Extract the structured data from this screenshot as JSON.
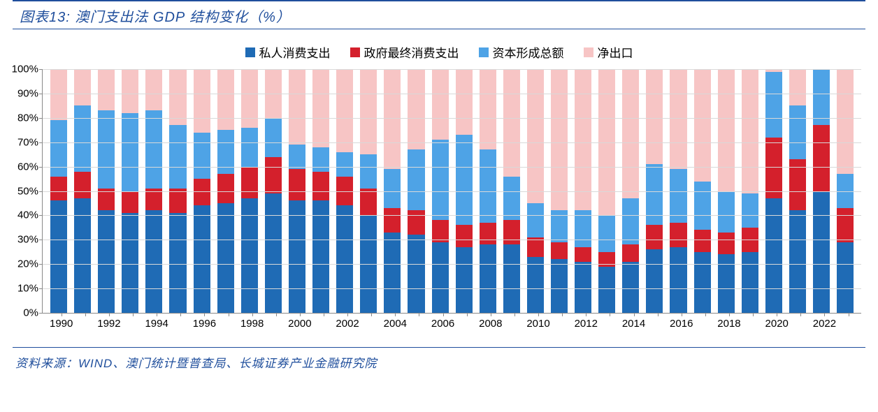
{
  "title": "图表13:  澳门支出法 GDP 结构变化（%）",
  "source": "资料来源：WIND、澳门统计暨普查局、长城证券产业金融研究院",
  "chart": {
    "type": "stacked-bar-100",
    "ylim": [
      0,
      100
    ],
    "ytick_step": 10,
    "ylabel_suffix": "%",
    "background_color": "#ffffff",
    "grid_color": "#d9d9d9",
    "axis_color": "#888888",
    "title_color": "#1f4e9c",
    "label_fontsize": 15,
    "title_fontsize": 20,
    "legend_fontsize": 17,
    "bar_gap_ratio": 0.25,
    "series_colors": {
      "priv": "#1f6bb5",
      "gov": "#d4202c",
      "cap": "#4ea3e6",
      "netx": "#f7c5c5"
    },
    "series_labels": {
      "priv": "私人消费支出",
      "gov": "政府最终消费支出",
      "cap": "资本形成总额",
      "netx": "净出口"
    },
    "years": [
      "1990",
      "1991",
      "1992",
      "1993",
      "1994",
      "1995",
      "1996",
      "1997",
      "1998",
      "1999",
      "2000",
      "2001",
      "2002",
      "2003",
      "2004",
      "2005",
      "2006",
      "2007",
      "2008",
      "2009",
      "2010",
      "2011",
      "2012",
      "2013",
      "2014",
      "2015",
      "2016",
      "2017",
      "2018",
      "2019",
      "2020",
      "2021",
      "2022",
      "2023"
    ],
    "xlabel_every": 2,
    "data": [
      {
        "priv": 46,
        "gov": 10,
        "cap": 23,
        "netx": 21
      },
      {
        "priv": 47,
        "gov": 11,
        "cap": 27,
        "netx": 15
      },
      {
        "priv": 42,
        "gov": 9,
        "cap": 32,
        "netx": 17
      },
      {
        "priv": 41,
        "gov": 9,
        "cap": 32,
        "netx": 18
      },
      {
        "priv": 42,
        "gov": 9,
        "cap": 32,
        "netx": 17
      },
      {
        "priv": 41,
        "gov": 10,
        "cap": 26,
        "netx": 23
      },
      {
        "priv": 44,
        "gov": 11,
        "cap": 19,
        "netx": 26
      },
      {
        "priv": 45,
        "gov": 12,
        "cap": 18,
        "netx": 25
      },
      {
        "priv": 47,
        "gov": 13,
        "cap": 16,
        "netx": 24
      },
      {
        "priv": 49,
        "gov": 15,
        "cap": 16,
        "netx": 20
      },
      {
        "priv": 46,
        "gov": 13,
        "cap": 10,
        "netx": 31
      },
      {
        "priv": 46,
        "gov": 12,
        "cap": 10,
        "netx": 32
      },
      {
        "priv": 44,
        "gov": 12,
        "cap": 10,
        "netx": 34
      },
      {
        "priv": 40,
        "gov": 11,
        "cap": 14,
        "netx": 35
      },
      {
        "priv": 33,
        "gov": 10,
        "cap": 16,
        "netx": 41
      },
      {
        "priv": 32,
        "gov": 10,
        "cap": 25,
        "netx": 33
      },
      {
        "priv": 29,
        "gov": 9,
        "cap": 33,
        "netx": 29
      },
      {
        "priv": 27,
        "gov": 9,
        "cap": 37,
        "netx": 27
      },
      {
        "priv": 28,
        "gov": 9,
        "cap": 30,
        "netx": 33
      },
      {
        "priv": 28,
        "gov": 10,
        "cap": 18,
        "netx": 44
      },
      {
        "priv": 23,
        "gov": 8,
        "cap": 14,
        "netx": 55
      },
      {
        "priv": 22,
        "gov": 7,
        "cap": 13,
        "netx": 58
      },
      {
        "priv": 21,
        "gov": 6,
        "cap": 15,
        "netx": 58
      },
      {
        "priv": 19,
        "gov": 6,
        "cap": 15,
        "netx": 60
      },
      {
        "priv": 21,
        "gov": 7,
        "cap": 19,
        "netx": 53
      },
      {
        "priv": 26,
        "gov": 10,
        "cap": 25,
        "netx": 39
      },
      {
        "priv": 27,
        "gov": 10,
        "cap": 22,
        "netx": 41
      },
      {
        "priv": 25,
        "gov": 9,
        "cap": 20,
        "netx": 46
      },
      {
        "priv": 24,
        "gov": 9,
        "cap": 17,
        "netx": 50
      },
      {
        "priv": 25,
        "gov": 10,
        "cap": 14,
        "netx": 51
      },
      {
        "priv": 47,
        "gov": 25,
        "cap": 27,
        "netx": 1
      },
      {
        "priv": 42,
        "gov": 21,
        "cap": 22,
        "netx": 15
      },
      {
        "priv": 50,
        "gov": 27,
        "cap": 23,
        "netx": 0
      },
      {
        "priv": 29,
        "gov": 14,
        "cap": 14,
        "netx": 43
      }
    ]
  }
}
